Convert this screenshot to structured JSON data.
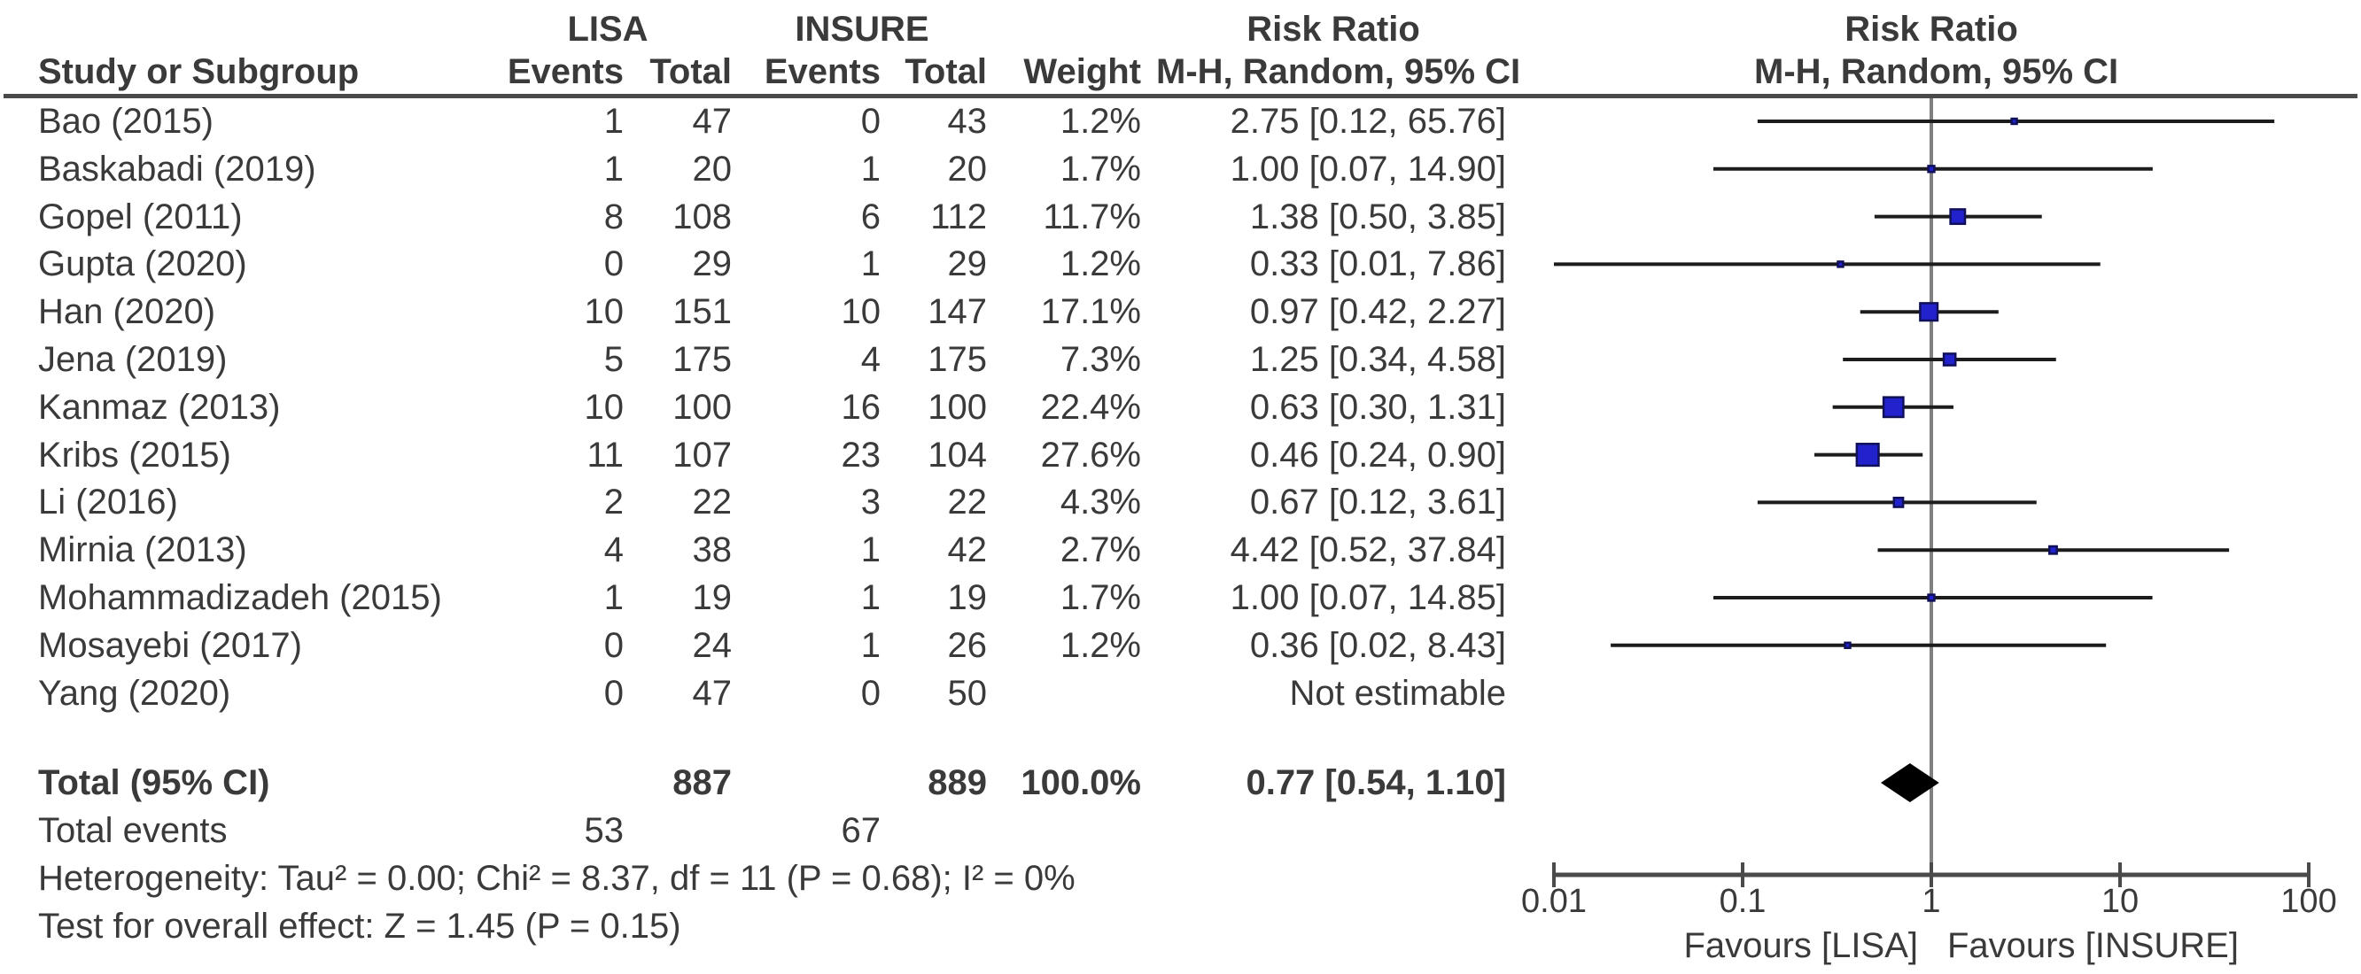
{
  "figure": {
    "headers": {
      "study": "Study or Subgroup",
      "group1": "LISA",
      "group2": "INSURE",
      "events": "Events",
      "total": "Total",
      "weight": "Weight",
      "risk_ratio": "Risk Ratio",
      "method": "M-H, Random, 95% CI"
    },
    "total_row": {
      "label": "Total (95% CI)",
      "total_lisa": "887",
      "total_insure": "889",
      "weight": "100.0%",
      "rr_text": "0.77 [0.54, 1.10]"
    },
    "total_events_row": {
      "label": "Total events",
      "events_lisa": "53",
      "events_insure": "67"
    },
    "heterogeneity": "Heterogeneity: Tau² = 0.00; Chi² = 8.37, df = 11 (P = 0.68); I² = 0%",
    "overall_effect": "Test for overall effect: Z = 1.45 (P = 0.15)",
    "favours_left": "Favours [LISA]",
    "favours_right": "Favours [INSURE]"
  },
  "chart_data": {
    "type": "forest",
    "effect_measure": "Risk Ratio",
    "method": "M-H, Random, 95% CI",
    "x_scale": "log10",
    "x_range": [
      0.01,
      100
    ],
    "x_ticks": [
      0.01,
      0.1,
      1,
      10,
      100
    ],
    "marker_fill": "#2222cc",
    "marker_stroke": "#10105a",
    "ci_line_color": "#1c1c1c",
    "centerline_color": "#808080",
    "axis_color": "#4a4a4a",
    "diamond_color": "#000000",
    "studies": [
      {
        "name": "Bao (2015)",
        "events_lisa": 1,
        "total_lisa": 47,
        "events_insure": 0,
        "total_insure": 43,
        "weight": "1.2%",
        "rr": 2.75,
        "ci_low": 0.12,
        "ci_high": 65.76,
        "rr_text": "2.75 [0.12, 65.76]"
      },
      {
        "name": "Baskabadi (2019)",
        "events_lisa": 1,
        "total_lisa": 20,
        "events_insure": 1,
        "total_insure": 20,
        "weight": "1.7%",
        "rr": 1.0,
        "ci_low": 0.07,
        "ci_high": 14.9,
        "rr_text": "1.00 [0.07, 14.90]"
      },
      {
        "name": "Gopel (2011)",
        "events_lisa": 8,
        "total_lisa": 108,
        "events_insure": 6,
        "total_insure": 112,
        "weight": "11.7%",
        "rr": 1.38,
        "ci_low": 0.5,
        "ci_high": 3.85,
        "rr_text": "1.38 [0.50, 3.85]"
      },
      {
        "name": "Gupta (2020)",
        "events_lisa": 0,
        "total_lisa": 29,
        "events_insure": 1,
        "total_insure": 29,
        "weight": "1.2%",
        "rr": 0.33,
        "ci_low": 0.01,
        "ci_high": 7.86,
        "rr_text": "0.33 [0.01, 7.86]"
      },
      {
        "name": "Han (2020)",
        "events_lisa": 10,
        "total_lisa": 151,
        "events_insure": 10,
        "total_insure": 147,
        "weight": "17.1%",
        "rr": 0.97,
        "ci_low": 0.42,
        "ci_high": 2.27,
        "rr_text": "0.97 [0.42, 2.27]"
      },
      {
        "name": "Jena (2019)",
        "events_lisa": 5,
        "total_lisa": 175,
        "events_insure": 4,
        "total_insure": 175,
        "weight": "7.3%",
        "rr": 1.25,
        "ci_low": 0.34,
        "ci_high": 4.58,
        "rr_text": "1.25 [0.34, 4.58]"
      },
      {
        "name": "Kanmaz (2013)",
        "events_lisa": 10,
        "total_lisa": 100,
        "events_insure": 16,
        "total_insure": 100,
        "weight": "22.4%",
        "rr": 0.63,
        "ci_low": 0.3,
        "ci_high": 1.31,
        "rr_text": "0.63 [0.30, 1.31]"
      },
      {
        "name": "Kribs (2015)",
        "events_lisa": 11,
        "total_lisa": 107,
        "events_insure": 23,
        "total_insure": 104,
        "weight": "27.6%",
        "rr": 0.46,
        "ci_low": 0.24,
        "ci_high": 0.9,
        "rr_text": "0.46 [0.24, 0.90]"
      },
      {
        "name": "Li (2016)",
        "events_lisa": 2,
        "total_lisa": 22,
        "events_insure": 3,
        "total_insure": 22,
        "weight": "4.3%",
        "rr": 0.67,
        "ci_low": 0.12,
        "ci_high": 3.61,
        "rr_text": "0.67 [0.12, 3.61]"
      },
      {
        "name": "Mirnia (2013)",
        "events_lisa": 4,
        "total_lisa": 38,
        "events_insure": 1,
        "total_insure": 42,
        "weight": "2.7%",
        "rr": 4.42,
        "ci_low": 0.52,
        "ci_high": 37.84,
        "rr_text": "4.42 [0.52, 37.84]"
      },
      {
        "name": "Mohammadizadeh (2015)",
        "events_lisa": 1,
        "total_lisa": 19,
        "events_insure": 1,
        "total_insure": 19,
        "weight": "1.7%",
        "rr": 1.0,
        "ci_low": 0.07,
        "ci_high": 14.85,
        "rr_text": "1.00 [0.07, 14.85]"
      },
      {
        "name": "Mosayebi (2017)",
        "events_lisa": 0,
        "total_lisa": 24,
        "events_insure": 1,
        "total_insure": 26,
        "weight": "1.2%",
        "rr": 0.36,
        "ci_low": 0.02,
        "ci_high": 8.43,
        "rr_text": "0.36 [0.02, 8.43]"
      },
      {
        "name": "Yang (2020)",
        "events_lisa": 0,
        "total_lisa": 47,
        "events_insure": 0,
        "total_insure": 50,
        "weight": "",
        "rr": null,
        "ci_low": null,
        "ci_high": null,
        "rr_text": "Not estimable"
      }
    ],
    "overall": {
      "rr": 0.77,
      "ci_low": 0.54,
      "ci_high": 1.1
    },
    "totals": {
      "total_lisa": 887,
      "total_insure": 889,
      "events_lisa": 53,
      "events_insure": 67,
      "weight": "100.0%"
    },
    "heterogeneity": {
      "tau2": 0.0,
      "chi2": 8.37,
      "df": 11,
      "p": 0.68,
      "i2": "0%"
    },
    "overall_effect_test": {
      "z": 1.45,
      "p": 0.15
    }
  }
}
